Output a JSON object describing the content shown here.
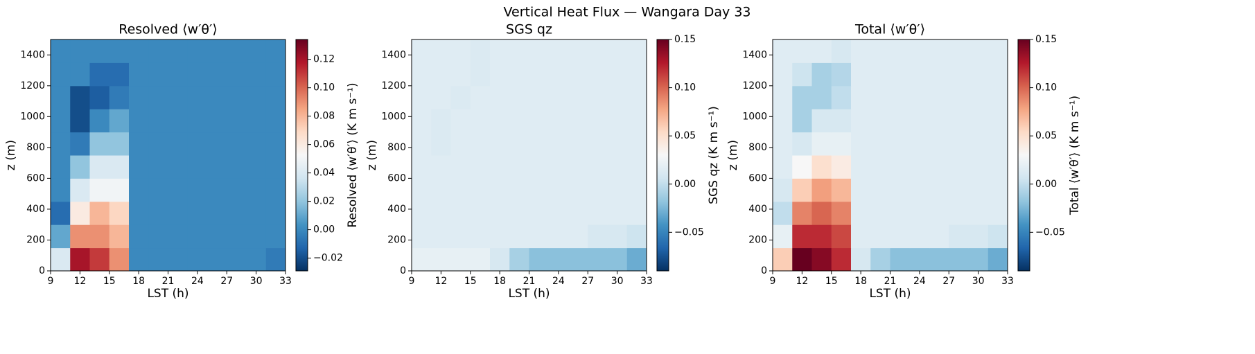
{
  "title": "Vertical Heat Flux — Wangara Day 33",
  "chart_data": [
    {
      "type": "heatmap",
      "title": "Resolved ⟨w′θ′⟩",
      "x_label": "LST (h)",
      "y_label": "z (m)",
      "colorbar_label": "Resolved ⟨w′θ′⟩ (K m s⁻¹)",
      "colormap": "RdBu_r",
      "x": [
        10,
        12,
        14,
        16,
        18,
        20,
        22,
        24,
        26,
        28,
        30,
        32
      ],
      "y": [
        75,
        225,
        375,
        525,
        675,
        825,
        975,
        1125,
        1275,
        1425
      ],
      "z": [
        [
          0.04,
          0.12,
          0.11,
          0.09,
          0,
          0,
          0,
          0,
          0,
          0,
          0,
          -0.005
        ],
        [
          0.01,
          0.09,
          0.09,
          0.08,
          0,
          0,
          0,
          0,
          0,
          0,
          0,
          0
        ],
        [
          -0.01,
          0.06,
          0.08,
          0.07,
          0,
          0,
          0,
          0,
          0,
          0,
          0,
          0
        ],
        [
          0,
          0.04,
          0.05,
          0.05,
          0,
          0,
          0,
          0,
          0,
          0,
          0,
          0
        ],
        [
          0,
          0.02,
          0.04,
          0.04,
          0,
          0,
          0,
          0,
          0,
          0,
          0,
          0
        ],
        [
          0,
          -0.005,
          0.02,
          0.02,
          0,
          0,
          0,
          0,
          0,
          0,
          0,
          0
        ],
        [
          0,
          -0.02,
          0,
          0.01,
          0,
          0,
          0,
          0,
          0,
          0,
          0,
          0
        ],
        [
          0,
          -0.02,
          -0.015,
          -0.005,
          0,
          0,
          0,
          0,
          0,
          0,
          0,
          0
        ],
        [
          0,
          0,
          -0.01,
          -0.01,
          0,
          0,
          0,
          0,
          0,
          0,
          0,
          0
        ],
        [
          0,
          0,
          0,
          0,
          0,
          0,
          0,
          0,
          0,
          0,
          0,
          0
        ]
      ],
      "xlim": [
        9,
        33
      ],
      "ylim": [
        0,
        1500
      ],
      "xticks": [
        9,
        12,
        15,
        18,
        21,
        24,
        27,
        30,
        33
      ],
      "yticks": [
        0,
        200,
        400,
        600,
        800,
        1000,
        1200,
        1400
      ],
      "clim": [
        -0.029,
        0.134
      ],
      "cticks": [
        {
          "value": -0.02,
          "label": "−0.02"
        },
        {
          "value": 0,
          "label": "0.00"
        },
        {
          "value": 0.02,
          "label": "0.02"
        },
        {
          "value": 0.04,
          "label": "0.04"
        },
        {
          "value": 0.06,
          "label": "0.06"
        },
        {
          "value": 0.08,
          "label": "0.08"
        },
        {
          "value": 0.1,
          "label": "0.10"
        },
        {
          "value": 0.12,
          "label": "0.12"
        }
      ]
    },
    {
      "type": "heatmap",
      "title": "SGS qz",
      "x_label": "LST (h)",
      "y_label": "z (m)",
      "colorbar_label": "SGS qz (K m s⁻¹)",
      "colormap": "RdBu_r",
      "x": [
        10,
        12,
        14,
        16,
        18,
        20,
        22,
        24,
        26,
        28,
        30,
        32
      ],
      "y": [
        75,
        225,
        375,
        525,
        675,
        825,
        975,
        1125,
        1275,
        1425
      ],
      "z": [
        [
          0.02,
          0.02,
          0.02,
          0.02,
          0.01,
          -0.01,
          -0.02,
          -0.02,
          -0.02,
          -0.02,
          -0.02,
          -0.03
        ],
        [
          0.015,
          0.015,
          0.015,
          0.015,
          0.015,
          0.015,
          0.015,
          0.015,
          0.015,
          0.01,
          0.01,
          0.005
        ],
        [
          0.015,
          0.015,
          0.015,
          0.015,
          0.015,
          0.015,
          0.015,
          0.015,
          0.015,
          0.015,
          0.015,
          0.015
        ],
        [
          0.015,
          0.015,
          0.015,
          0.015,
          0.015,
          0.015,
          0.015,
          0.015,
          0.015,
          0.015,
          0.015,
          0.015
        ],
        [
          0.015,
          0.015,
          0.015,
          0.015,
          0.015,
          0.015,
          0.015,
          0.015,
          0.015,
          0.015,
          0.015,
          0.015
        ],
        [
          0.015,
          0.012,
          0.015,
          0.015,
          0.015,
          0.015,
          0.015,
          0.015,
          0.015,
          0.015,
          0.015,
          0.015
        ],
        [
          0.015,
          0.012,
          0.015,
          0.015,
          0.015,
          0.015,
          0.015,
          0.015,
          0.015,
          0.015,
          0.015,
          0.015
        ],
        [
          0.015,
          0.015,
          0.012,
          0.015,
          0.015,
          0.015,
          0.015,
          0.015,
          0.015,
          0.015,
          0.015,
          0.015
        ],
        [
          0.015,
          0.015,
          0.015,
          0.012,
          0.015,
          0.015,
          0.015,
          0.015,
          0.015,
          0.015,
          0.015,
          0.015
        ],
        [
          0.015,
          0.015,
          0.015,
          0.012,
          0.015,
          0.015,
          0.015,
          0.015,
          0.015,
          0.015,
          0.015,
          0.015
        ]
      ],
      "xlim": [
        9,
        33
      ],
      "ylim": [
        0,
        1500
      ],
      "xticks": [
        9,
        12,
        15,
        18,
        21,
        24,
        27,
        30,
        33
      ],
      "yticks": [
        0,
        200,
        400,
        600,
        800,
        1000,
        1200,
        1400
      ],
      "clim": [
        -0.09,
        0.15
      ],
      "cticks": [
        {
          "value": -0.05,
          "label": "−0.05"
        },
        {
          "value": 0,
          "label": "0.00"
        },
        {
          "value": 0.05,
          "label": "0.05"
        },
        {
          "value": 0.1,
          "label": "0.10"
        },
        {
          "value": 0.15,
          "label": "0.15"
        }
      ]
    },
    {
      "type": "heatmap",
      "title": "Total ⟨w′θ′⟩",
      "x_label": "LST (h)",
      "y_label": "z (m)",
      "colorbar_label": "Total ⟨w′θ′⟩ (K m s⁻¹)",
      "colormap": "RdBu_r",
      "x": [
        10,
        12,
        14,
        16,
        18,
        20,
        22,
        24,
        26,
        28,
        30,
        32
      ],
      "y": [
        75,
        225,
        375,
        525,
        675,
        825,
        975,
        1125,
        1275,
        1425
      ],
      "z": [
        [
          0.06,
          0.15,
          0.14,
          0.12,
          0.01,
          -0.01,
          -0.02,
          -0.02,
          -0.02,
          -0.02,
          -0.02,
          -0.03
        ],
        [
          0.02,
          0.12,
          0.12,
          0.11,
          0.015,
          0.015,
          0.015,
          0.015,
          0.015,
          0.01,
          0.01,
          0.005
        ],
        [
          0,
          0.09,
          0.1,
          0.09,
          0.015,
          0.015,
          0.015,
          0.015,
          0.015,
          0.015,
          0.015,
          0.015
        ],
        [
          0.01,
          0.06,
          0.08,
          0.07,
          0.015,
          0.015,
          0.015,
          0.015,
          0.015,
          0.015,
          0.015,
          0.015
        ],
        [
          0.015,
          0.03,
          0.05,
          0.04,
          0.015,
          0.015,
          0.015,
          0.015,
          0.015,
          0.015,
          0.015,
          0.015
        ],
        [
          0.015,
          0.01,
          0.02,
          0.02,
          0.015,
          0.015,
          0.015,
          0.015,
          0.015,
          0.015,
          0.015,
          0.015
        ],
        [
          0.015,
          -0.01,
          0.01,
          0.01,
          0.015,
          0.015,
          0.015,
          0.015,
          0.015,
          0.015,
          0.015,
          0.015
        ],
        [
          0.015,
          -0.01,
          -0.01,
          0,
          0.015,
          0.015,
          0.015,
          0.015,
          0.015,
          0.015,
          0.015,
          0.015
        ],
        [
          0.015,
          0.005,
          -0.01,
          -0.005,
          0.015,
          0.015,
          0.015,
          0.015,
          0.015,
          0.015,
          0.015,
          0.015
        ],
        [
          0.015,
          0.015,
          0.015,
          0.01,
          0.015,
          0.015,
          0.015,
          0.015,
          0.015,
          0.015,
          0.015,
          0.015
        ]
      ],
      "xlim": [
        9,
        33
      ],
      "ylim": [
        0,
        1500
      ],
      "xticks": [
        9,
        12,
        15,
        18,
        21,
        24,
        27,
        30,
        33
      ],
      "yticks": [
        0,
        200,
        400,
        600,
        800,
        1000,
        1200,
        1400
      ],
      "clim": [
        -0.09,
        0.15
      ],
      "cticks": [
        {
          "value": -0.05,
          "label": "−0.05"
        },
        {
          "value": 0,
          "label": "0.00"
        },
        {
          "value": 0.05,
          "label": "0.05"
        },
        {
          "value": 0.1,
          "label": "0.10"
        },
        {
          "value": 0.15,
          "label": "0.15"
        }
      ]
    }
  ]
}
